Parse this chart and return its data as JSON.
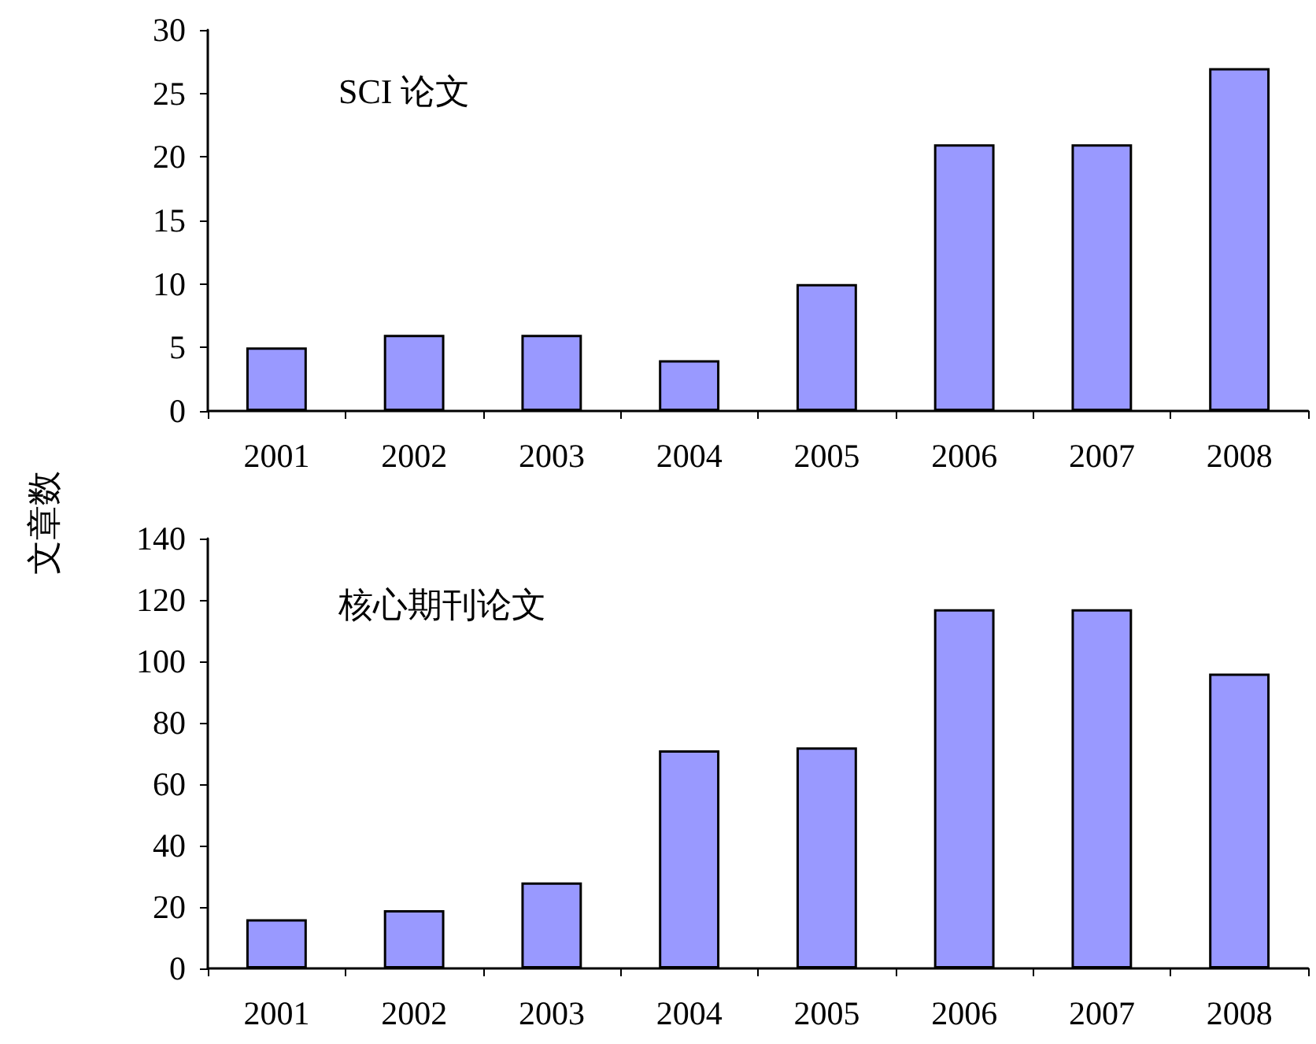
{
  "chart_data": [
    {
      "type": "bar",
      "title": "SCI 论文",
      "categories": [
        "2001",
        "2002",
        "2003",
        "2004",
        "2005",
        "2006",
        "2007",
        "2008"
      ],
      "values": [
        5,
        6,
        6,
        4,
        10,
        21,
        21,
        27
      ],
      "color": "#9999ff",
      "ylim": [
        0,
        30
      ],
      "yticks": [
        0,
        5,
        10,
        15,
        20,
        25,
        30
      ]
    },
    {
      "type": "bar",
      "title": "核心期刊论文",
      "ylabel": "文章数",
      "categories": [
        "2001",
        "2002",
        "2003",
        "2004",
        "2005",
        "2006",
        "2007",
        "2008"
      ],
      "values": [
        16,
        19,
        28,
        71,
        72,
        117,
        117,
        96
      ],
      "color": "#9999ff",
      "ylim": [
        0,
        140
      ],
      "yticks": [
        0,
        20,
        40,
        60,
        80,
        100,
        120,
        140
      ]
    }
  ]
}
